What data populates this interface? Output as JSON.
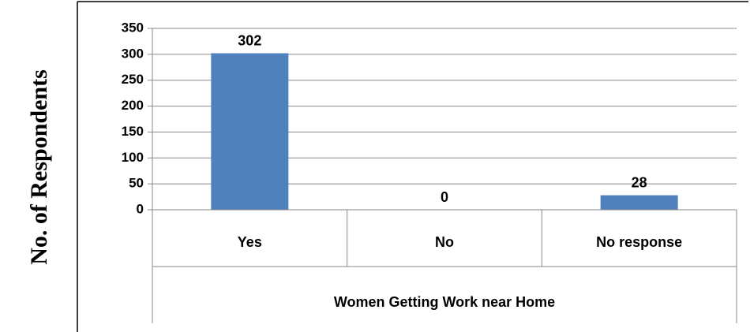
{
  "chart_data": {
    "type": "bar",
    "title": "",
    "categories": [
      "Yes",
      "No",
      "No response"
    ],
    "values": [
      302,
      0,
      28
    ],
    "data_labels": [
      "302",
      "0",
      "28"
    ],
    "xlabel": "Women Getting Work near Home",
    "ylabel": "No. of Respondents",
    "ylim": [
      0,
      350
    ],
    "yticks": [
      "0",
      "50",
      "100",
      "150",
      "200",
      "250",
      "300",
      "350"
    ],
    "grid": true,
    "legend": "none",
    "bar_color": "#4F81BD"
  }
}
